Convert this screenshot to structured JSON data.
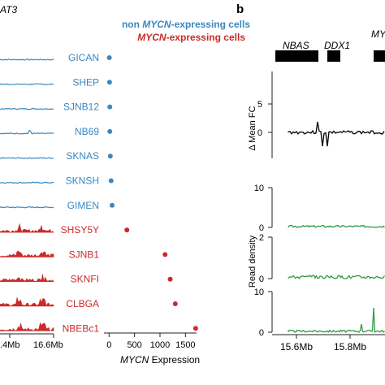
{
  "panel_a": {
    "title_fragment": "AT3",
    "legend": {
      "non_label_prefix": "non ",
      "non_label_gene": "MYCN",
      "non_label_suffix": "-expressing cells",
      "expr_label_gene": "MYCN",
      "expr_label_suffix": "-expressing cells",
      "non_color": "#3a87c0",
      "expr_color": "#cc2a2a"
    },
    "track_axis": {
      "left_tick": ".4Mb",
      "right_tick": "16.6Mb"
    },
    "scatter_xlabel_gene": "MYCN",
    "scatter_xlabel_suffix": " Expression"
  },
  "panel_b": {
    "letter": "b",
    "title_fragment": "MY",
    "genes": [
      "NBAS",
      "DDX1"
    ],
    "ylabel_top": "Δ Mean FC",
    "ylabel_bottom": "Read density",
    "x_ticks": [
      "15.6Mb",
      "15.8Mb"
    ],
    "top_yticks": [
      "5",
      "0"
    ],
    "density_ticks": [
      [
        "10",
        "0"
      ],
      [
        "2",
        "0"
      ],
      [
        "10",
        "0"
      ]
    ],
    "green_color": "#2e9a43"
  },
  "chart_data": [
    {
      "type": "scatter",
      "xlabel": "MYCN Expression",
      "x_ticks": [
        "0",
        "500",
        "1000",
        "1500"
      ],
      "xlim": [
        -100,
        1750
      ],
      "categories": [
        "GICAN",
        "SHEP",
        "SJNB12",
        "NB69",
        "SKNAS",
        "SKNSH",
        "GIMEN",
        "SHSY5Y",
        "SJNB1",
        "SKNFI",
        "CLBGA",
        "NBEBc1"
      ],
      "series": [
        {
          "name": "non MYCN-expressing cells",
          "color": "#3a87c0",
          "points": [
            [
              "GICAN",
              5
            ],
            [
              "SHEP",
              10
            ],
            [
              "SJNB12",
              15
            ],
            [
              "NB69",
              15
            ],
            [
              "SKNAS",
              25
            ],
            [
              "SKNSH",
              40
            ],
            [
              "GIMEN",
              60
            ]
          ]
        },
        {
          "name": "MYCN-expressing cells",
          "color": "#cc2a2a",
          "points": [
            [
              "SHSY5Y",
              350
            ],
            [
              "SJNB1",
              1100
            ],
            [
              "SKNFI",
              1200
            ],
            [
              "CLBGA",
              1300
            ],
            [
              "NBEBc1",
              1700
            ]
          ]
        }
      ]
    }
  ]
}
